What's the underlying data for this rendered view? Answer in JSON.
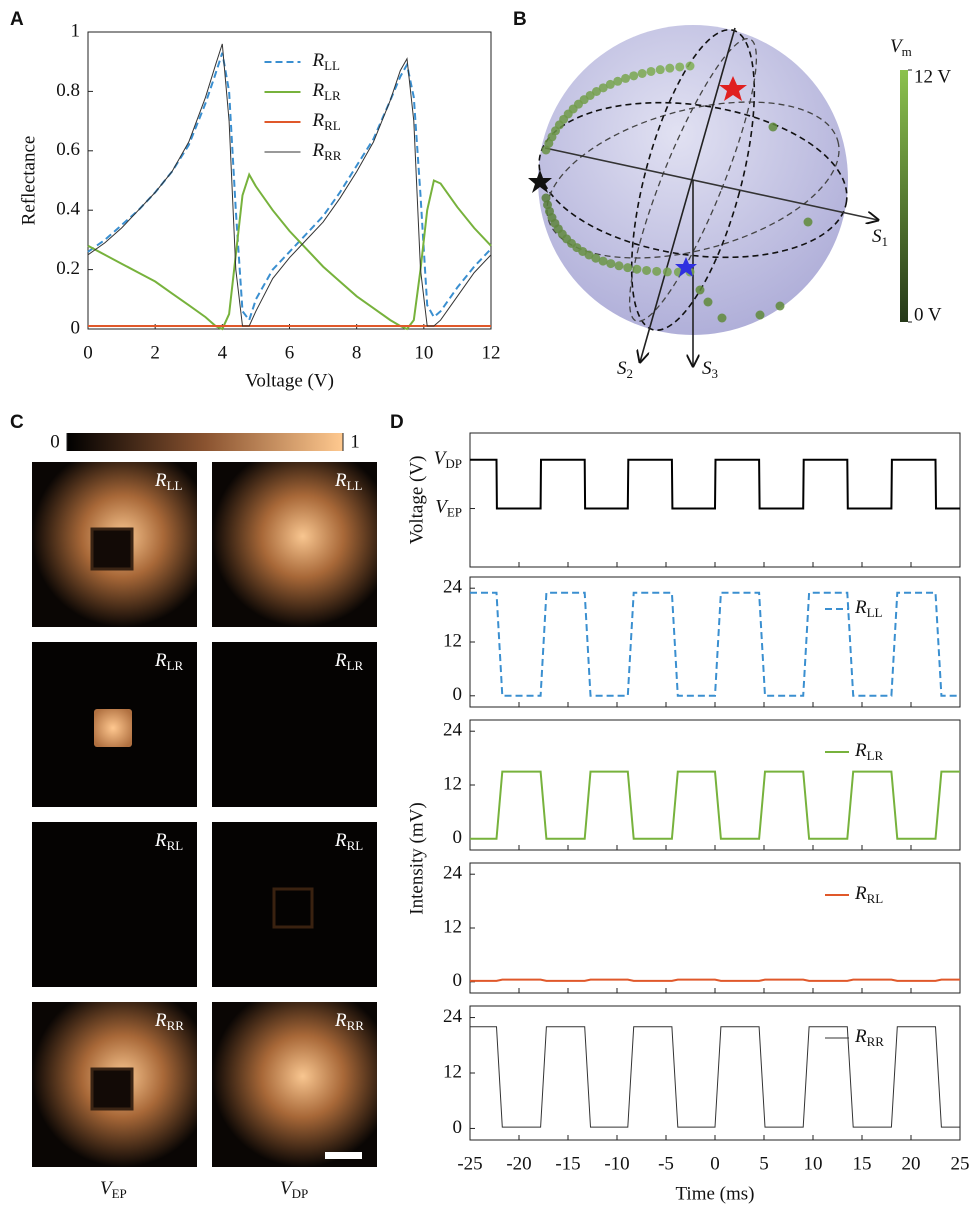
{
  "panel_labels": [
    "A",
    "B",
    "C",
    "D"
  ],
  "chart_data": [
    {
      "type": "line",
      "xlabel": "Voltage (V)",
      "ylabel": "Reflectance",
      "x": [
        0,
        0.5,
        1,
        1.5,
        2,
        2.5,
        3,
        3.5,
        3.8,
        4.0,
        4.2,
        4.4,
        4.6,
        4.8,
        5,
        5.5,
        6,
        6.5,
        7,
        7.5,
        8,
        8.5,
        9,
        9.3,
        9.5,
        9.7,
        9.9,
        10.1,
        10.3,
        10.5,
        11,
        11.5,
        12
      ],
      "xlim": [
        0,
        12
      ],
      "xticks": [
        0,
        2,
        4,
        6,
        8,
        10,
        12
      ],
      "ylim": [
        0,
        1
      ],
      "yticks": [
        0,
        0.2,
        0.4,
        0.6,
        0.8,
        1
      ],
      "legend": "upper center",
      "series": [
        {
          "name": "RLL",
          "color": "#3a8fd0",
          "linestyle": "dashed",
          "linewidth": 2,
          "values": [
            0.26,
            0.3,
            0.35,
            0.4,
            0.46,
            0.53,
            0.62,
            0.76,
            0.86,
            0.93,
            0.8,
            0.4,
            0.06,
            0.03,
            0.1,
            0.2,
            0.26,
            0.32,
            0.38,
            0.46,
            0.55,
            0.64,
            0.77,
            0.85,
            0.89,
            0.78,
            0.45,
            0.08,
            0.04,
            0.06,
            0.14,
            0.21,
            0.27
          ]
        },
        {
          "name": "RLR",
          "color": "#77b23c",
          "linestyle": "solid",
          "linewidth": 2,
          "values": [
            0.28,
            0.25,
            0.22,
            0.19,
            0.16,
            0.12,
            0.08,
            0.04,
            0.01,
            0.0,
            0.05,
            0.25,
            0.45,
            0.52,
            0.48,
            0.4,
            0.33,
            0.27,
            0.21,
            0.16,
            0.11,
            0.07,
            0.03,
            0.01,
            0.0,
            0.03,
            0.2,
            0.4,
            0.5,
            0.49,
            0.41,
            0.34,
            0.28
          ]
        },
        {
          "name": "RRL",
          "color": "#e0582a",
          "linestyle": "solid",
          "linewidth": 2,
          "values": [
            0.01,
            0.01,
            0.01,
            0.01,
            0.01,
            0.01,
            0.01,
            0.01,
            0.01,
            0.01,
            0.01,
            0.01,
            0.01,
            0.01,
            0.01,
            0.01,
            0.01,
            0.01,
            0.01,
            0.01,
            0.01,
            0.01,
            0.01,
            0.01,
            0.01,
            0.01,
            0.01,
            0.01,
            0.01,
            0.01,
            0.01,
            0.01,
            0.01
          ]
        },
        {
          "name": "RRR",
          "color": "#333333",
          "linestyle": "solid",
          "linewidth": 1,
          "values": [
            0.25,
            0.29,
            0.34,
            0.4,
            0.46,
            0.53,
            0.63,
            0.78,
            0.89,
            0.96,
            0.7,
            0.2,
            0.01,
            0.01,
            0.06,
            0.17,
            0.24,
            0.3,
            0.36,
            0.44,
            0.53,
            0.63,
            0.77,
            0.87,
            0.91,
            0.7,
            0.2,
            0.01,
            0.01,
            0.03,
            0.11,
            0.19,
            0.25
          ]
        }
      ]
    },
    {
      "type": "stacked-line",
      "xlabel": "Time (ms)",
      "ylabel": "Intensity (mV)",
      "xlim": [
        -25,
        25
      ],
      "xticks": [
        -25,
        -20,
        -15,
        -10,
        -5,
        0,
        5,
        10,
        15,
        20,
        25
      ],
      "panels": [
        {
          "ylabel": "Voltage (V)",
          "x": [
            -25,
            -22.3,
            -22.25,
            -17.8,
            -17.75,
            -13.3,
            -13.25,
            -8.9,
            -8.85,
            -4.4,
            -4.35,
            0,
            0.05,
            4.5,
            4.55,
            9,
            9.05,
            13.5,
            13.55,
            18,
            18.05,
            22.5,
            22.55,
            25
          ],
          "ylim": [
            -1.2,
            1.55
          ],
          "yticks": [
            {
              "value": 1,
              "label": "VDP"
            },
            {
              "value": 0,
              "label": "VEP"
            }
          ],
          "series": [
            {
              "color": "#000000",
              "linestyle": "solid",
              "linewidth": 2,
              "values": [
                1,
                1,
                0,
                0,
                1,
                1,
                0,
                0,
                1,
                1,
                0,
                0,
                1,
                1,
                0,
                0,
                1,
                1,
                0,
                0,
                1,
                1,
                0,
                0
              ]
            }
          ]
        },
        {
          "x": [
            -25,
            -22.3,
            -21.7,
            -17.8,
            -17.2,
            -13.3,
            -12.7,
            -8.9,
            -8.3,
            -4.4,
            -3.8,
            0,
            0.6,
            4.5,
            5.1,
            9,
            9.6,
            13.5,
            14.1,
            18,
            18.6,
            22.5,
            23.1,
            25
          ],
          "ylim": [
            -2.5,
            26.5
          ],
          "yticks": [
            0,
            12,
            24
          ],
          "legend": "upper right",
          "series": [
            {
              "name": "RLL",
              "color": "#3a8fd0",
              "linestyle": "dashed",
              "linewidth": 2,
              "values": [
                23,
                23,
                0,
                0,
                23,
                23,
                0,
                0,
                23,
                23,
                0,
                0,
                23,
                23,
                0,
                0,
                23,
                23,
                0,
                0,
                23,
                23,
                0,
                0
              ]
            }
          ]
        },
        {
          "x": [
            -25,
            -22.3,
            -21.7,
            -17.8,
            -17.2,
            -13.3,
            -12.7,
            -8.9,
            -8.3,
            -4.4,
            -3.8,
            0,
            0.6,
            4.5,
            5.1,
            9,
            9.6,
            13.5,
            14.1,
            18,
            18.6,
            22.5,
            23.1,
            25
          ],
          "ylim": [
            -2.5,
            26.5
          ],
          "yticks": [
            0,
            12,
            24
          ],
          "legend": "upper right",
          "series": [
            {
              "name": "RLR",
              "color": "#77b23c",
              "linestyle": "solid",
              "linewidth": 2,
              "values": [
                0,
                0,
                15,
                15,
                0,
                0,
                15,
                15,
                0,
                0,
                15,
                15,
                0,
                0,
                15,
                15,
                0,
                0,
                15,
                15,
                0,
                0,
                15,
                15
              ]
            }
          ]
        },
        {
          "x": [
            -25,
            -22.3,
            -21.7,
            -17.8,
            -17.2,
            -13.3,
            -12.7,
            -8.9,
            -8.3,
            -4.4,
            -3.8,
            0,
            0.6,
            4.5,
            5.1,
            9,
            9.6,
            13.5,
            14.1,
            18,
            18.6,
            22.5,
            23.1,
            25
          ],
          "ylim": [
            -2.5,
            26.5
          ],
          "yticks": [
            0,
            12,
            24
          ],
          "legend": "upper right",
          "series": [
            {
              "name": "RRL",
              "color": "#e0582a",
              "linestyle": "solid",
              "linewidth": 2,
              "values": [
                0.2,
                0.2,
                0.5,
                0.5,
                0.2,
                0.2,
                0.5,
                0.5,
                0.2,
                0.2,
                0.5,
                0.5,
                0.2,
                0.2,
                0.5,
                0.5,
                0.2,
                0.2,
                0.5,
                0.5,
                0.2,
                0.2,
                0.5,
                0.5
              ]
            }
          ]
        },
        {
          "x": [
            -25,
            -22.3,
            -21.7,
            -17.8,
            -17.2,
            -13.3,
            -12.7,
            -8.9,
            -8.3,
            -4.4,
            -3.8,
            0,
            0.6,
            4.5,
            5.1,
            9,
            9.6,
            13.5,
            14.1,
            18,
            18.6,
            22.5,
            23.1,
            25
          ],
          "ylim": [
            -2.5,
            26.5
          ],
          "yticks": [
            0,
            12,
            24
          ],
          "legend": "upper right",
          "series": [
            {
              "name": "RRR",
              "color": "#333333",
              "linestyle": "solid",
              "linewidth": 1,
              "values": [
                22,
                22,
                0.3,
                0.3,
                22,
                22,
                0.3,
                0.3,
                22,
                22,
                0.3,
                0.3,
                22,
                22,
                0.3,
                0.3,
                22,
                22,
                0.3,
                0.3,
                22,
                22,
                0.3,
                0.3
              ]
            }
          ]
        }
      ]
    }
  ],
  "poincare_sphere": {
    "axis_labels": [
      "S1",
      "S2",
      "S3"
    ],
    "colorbar": {
      "label": "Vm",
      "lim": [
        0,
        12
      ],
      "ticks": [
        {
          "value": 0,
          "label": "0 V"
        },
        {
          "value": 12,
          "label": "12 V"
        }
      ]
    }
  },
  "images": {
    "colorbar": {
      "lim": [
        0,
        1
      ],
      "ticks": [
        0,
        1
      ]
    },
    "rows": [
      "RLL",
      "RLR",
      "RRL",
      "RRR"
    ],
    "columns": [
      "VEP",
      "VDP"
    ]
  }
}
